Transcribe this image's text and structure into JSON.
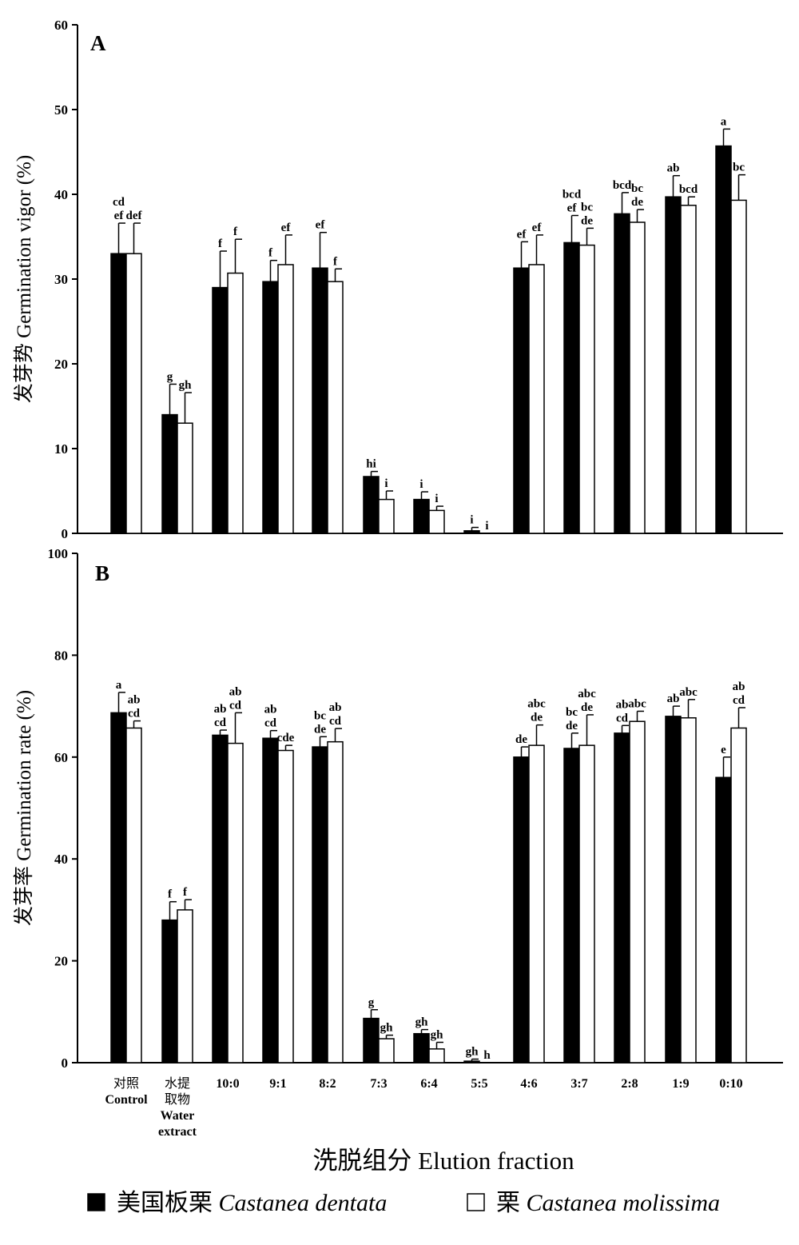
{
  "chart_data": [
    {
      "type": "bar",
      "panel_label": "A",
      "ylabel": "发芽势 Germination vigor (%)",
      "ylim": [
        0,
        60
      ],
      "yticks": [
        0,
        10,
        20,
        30,
        40,
        50,
        60
      ],
      "categories": [
        "对照 Control",
        "水提取物 Water extract",
        "10:0",
        "9:1",
        "8:2",
        "7:3",
        "6:4",
        "5:5",
        "4:6",
        "3:7",
        "2:8",
        "1:9",
        "0:10"
      ],
      "series": [
        {
          "name": "美国板栗 Castanea dentata",
          "color": "#000000",
          "values": [
            33.0,
            14.0,
            29.0,
            29.7,
            31.3,
            6.7,
            4.0,
            0.3,
            31.3,
            34.3,
            37.7,
            39.7,
            45.7
          ],
          "errors": [
            3.6,
            3.6,
            4.3,
            2.5,
            4.2,
            0.6,
            0.9,
            0.4,
            3.1,
            3.2,
            2.5,
            2.5,
            2.0
          ],
          "labels": [
            "cd\nef",
            "g",
            "f",
            "f",
            "ef",
            "hi",
            "i",
            "i",
            "ef",
            "bcd\nef",
            "bcd",
            "ab",
            "a"
          ]
        },
        {
          "name": "栗 Castanea molissima",
          "color": "#ffffff",
          "values": [
            33.0,
            13.0,
            30.7,
            31.7,
            29.7,
            4.0,
            2.7,
            0.0,
            31.7,
            34.0,
            36.7,
            38.7,
            39.3
          ],
          "errors": [
            3.6,
            3.6,
            4.0,
            3.5,
            1.5,
            1.0,
            0.5,
            0.0,
            3.5,
            2.0,
            1.5,
            1.0,
            3.0
          ],
          "labels": [
            "def",
            "gh",
            "f",
            "ef",
            "f",
            "i",
            "i",
            "i",
            "ef",
            "bc\nde",
            "bc\nde",
            "bcd",
            "bc"
          ]
        }
      ]
    },
    {
      "type": "bar",
      "panel_label": "B",
      "ylabel": "发芽率 Germination rate (%)",
      "ylim": [
        0,
        100
      ],
      "yticks": [
        0,
        20,
        40,
        60,
        80,
        100
      ],
      "categories": [
        "对照 Control",
        "水提取物 Water extract",
        "10:0",
        "9:1",
        "8:2",
        "7:3",
        "6:4",
        "5:5",
        "4:6",
        "3:7",
        "2:8",
        "1:9",
        "0:10"
      ],
      "series": [
        {
          "name": "美国板栗 Castanea dentata",
          "color": "#000000",
          "values": [
            68.7,
            28.0,
            64.3,
            63.7,
            62.0,
            8.7,
            5.7,
            0.3,
            60.0,
            61.7,
            64.7,
            68.0,
            56.0
          ],
          "errors": [
            4.0,
            3.6,
            1.0,
            1.5,
            2.0,
            1.7,
            0.8,
            0.4,
            2.0,
            3.0,
            1.5,
            2.0,
            4.0
          ],
          "labels": [
            "a",
            "f",
            "ab\ncd",
            "ab\ncd",
            "bc\nde",
            "g",
            "gh",
            "gh",
            "de",
            "bc\nde",
            "ab\ncd",
            "ab",
            "e"
          ]
        },
        {
          "name": "栗 Castanea molissima",
          "color": "#ffffff",
          "values": [
            65.7,
            30.0,
            62.7,
            61.3,
            63.0,
            4.7,
            2.7,
            0.0,
            62.3,
            62.3,
            67.0,
            67.7,
            65.7
          ],
          "errors": [
            1.4,
            2.0,
            6.0,
            1.0,
            2.6,
            0.7,
            1.3,
            0.0,
            4.0,
            6.0,
            2.0,
            3.6,
            4.0
          ],
          "labels": [
            "ab\ncd",
            "f",
            "ab\ncd",
            "cde",
            "ab\ncd",
            "gh",
            "gh",
            "h",
            "abc\nde",
            "abc\nde",
            "abc",
            "abc",
            "ab\ncd"
          ]
        }
      ]
    }
  ],
  "x_axis": {
    "xlabel": "洗脱组分 Elution fraction",
    "category_lines": [
      [
        "对照",
        "Control"
      ],
      [
        "水提",
        "取物",
        "Water",
        "extract"
      ],
      [
        "10:0"
      ],
      [
        "9:1"
      ],
      [
        "8:2"
      ],
      [
        "7:3"
      ],
      [
        "6:4"
      ],
      [
        "5:5"
      ],
      [
        "4:6"
      ],
      [
        "3:7"
      ],
      [
        "2:8"
      ],
      [
        "1:9"
      ],
      [
        "0:10"
      ]
    ]
  },
  "legend": {
    "items": [
      {
        "cn": "美国板栗",
        "latin": "Castanea dentata",
        "fill": "#000000"
      },
      {
        "cn": "栗",
        "latin": "Castanea molissima",
        "fill": "#ffffff"
      }
    ]
  }
}
